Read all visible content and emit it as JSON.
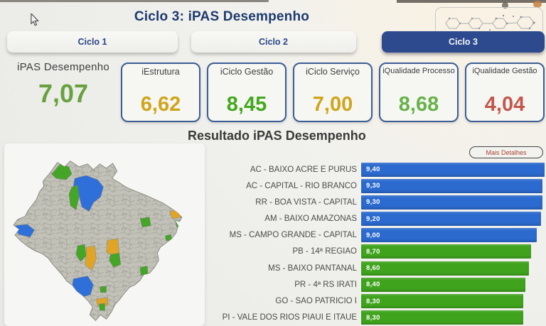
{
  "header": {
    "title": "Ciclo 3: iPAS Desempenho"
  },
  "tabs": [
    {
      "label": "Ciclo 1",
      "active": false
    },
    {
      "label": "Ciclo 2",
      "active": false
    },
    {
      "label": "Ciclo 3",
      "active": true
    }
  ],
  "kpi_main": {
    "label": "iPAS Desempenho",
    "value": "7,07",
    "color": "#69a13f"
  },
  "kpi_cards": [
    {
      "label": "iEstrutura",
      "value": "6,62",
      "color": "#cfa51b"
    },
    {
      "label": "iCiclo Gestão",
      "value": "8,45",
      "color": "#43a81e"
    },
    {
      "label": "iCiclo Serviço",
      "value": "7,00",
      "color": "#cfa51b"
    },
    {
      "label": "iQualidade Processo",
      "value": "8,68",
      "color": "#67b24a"
    },
    {
      "label": "iQualidade Gestão",
      "value": "4,04",
      "color": "#c4574b"
    }
  ],
  "section": {
    "title": "Resultado iPAS Desempenho",
    "details_button": "Mais Detalhes"
  },
  "chart_data": {
    "type": "bar",
    "orientation": "horizontal",
    "title": "Resultado iPAS Desempenho",
    "categories": [
      "AC - BAIXO ACRE E PURUS",
      "AC - CAPITAL - RIO BRANCO",
      "RR - BOA VISTA - CAPITAL",
      "AM - BAIXO AMAZONAS",
      "MS - CAMPO GRANDE - CAPITAL",
      "PB - 14ª REGIÃO",
      "MS - BAIXO PANTANAL",
      "PR - 4ª RS IRATI",
      "GO - SÃO PATRÍCIO I",
      "PI - VALE DOS RIOS PIAUÍ E ITAUE"
    ],
    "values": [
      9.4,
      9.3,
      9.3,
      9.2,
      9.0,
      8.7,
      8.6,
      8.4,
      8.3,
      8.3
    ],
    "value_labels": [
      "9,40",
      "9,30",
      "9,30",
      "9,20",
      "9,00",
      "8,70",
      "8,60",
      "8,40",
      "8,30",
      "8,30"
    ],
    "bar_colors": [
      "#2b6ace",
      "#2b6ace",
      "#2b6ace",
      "#2b6ace",
      "#2b6ace",
      "#3fa31d",
      "#3fa31d",
      "#3fa31d",
      "#3fa31d",
      "#3fa31d"
    ],
    "xlim": [
      0,
      9.4
    ],
    "grid": false,
    "value_label_position": "inside-left"
  },
  "map": {
    "description": "Choropleth map of Brazil health regions",
    "palette": {
      "blue_region": "#2f6fd9",
      "green_region": "#44a527",
      "yellow_region": "#e0a526",
      "gray_region": "#c2c1b8"
    }
  }
}
